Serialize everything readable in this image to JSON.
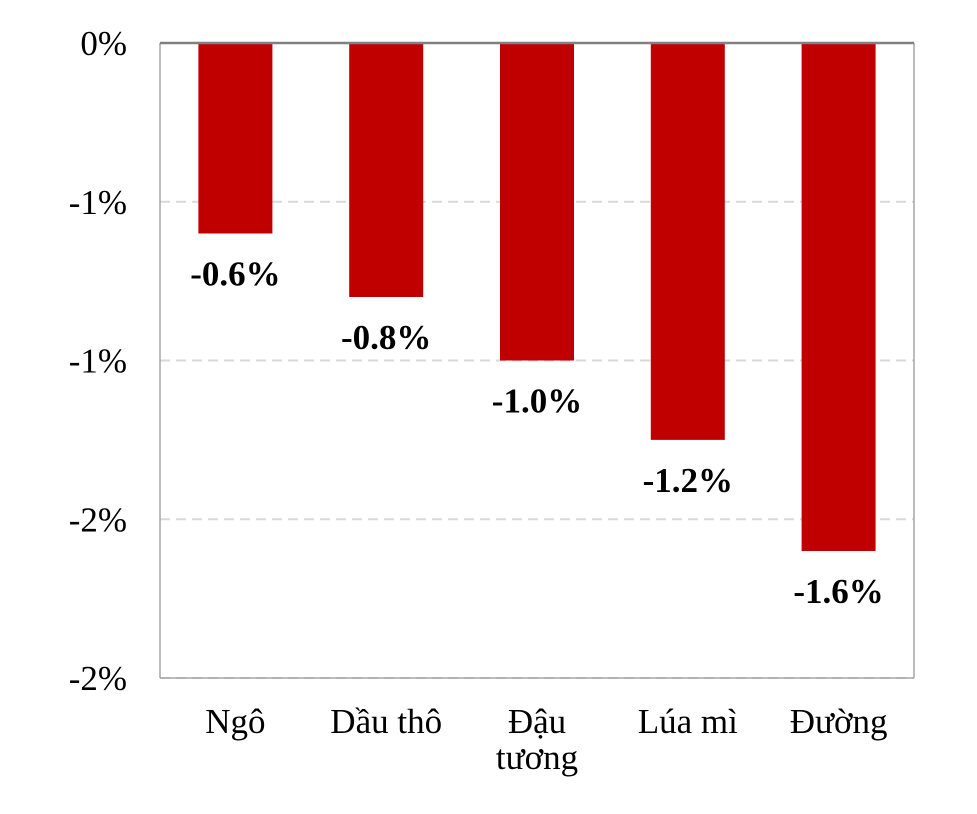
{
  "chart_data": {
    "type": "bar",
    "categories": [
      [
        "Ngô"
      ],
      [
        "Dầu thô"
      ],
      [
        "Đậu",
        "tương"
      ],
      [
        "Lúa mì"
      ],
      [
        "Đường"
      ]
    ],
    "values": [
      -0.6,
      -0.8,
      -1.0,
      -1.25,
      -1.6
    ],
    "data_labels": [
      "-0.6%",
      "-0.8%",
      "-1.0%",
      "-1.2%",
      "-1.6%"
    ],
    "ylim": [
      -2.0,
      0
    ],
    "yticks": [
      0,
      -0.5,
      -1.0,
      -1.5,
      -2.0
    ],
    "ytick_labels": [
      "0%",
      "-1%",
      "-1%",
      "-2%",
      "-2%"
    ],
    "bar_color": "#C00000",
    "grid": true,
    "grid_color": "#D9D9D9",
    "frame_color": "#A6A6A6",
    "xlabel": "",
    "ylabel": ""
  }
}
